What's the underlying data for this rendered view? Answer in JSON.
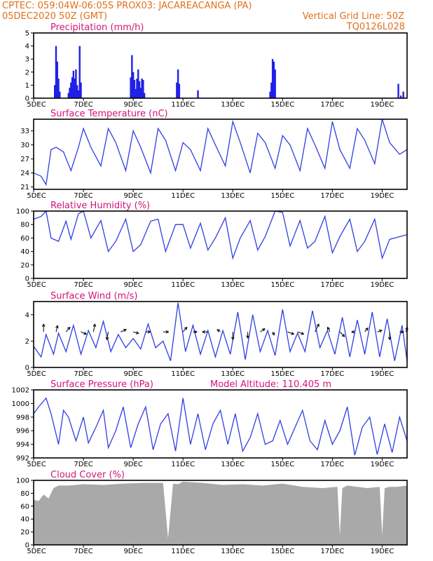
{
  "header": {
    "line1_left": "CPTEC:   059:04W-06:05S   PROX03: JACAREACANGA (PA)",
    "line2_left": "05DEC2020 50Z (GMT)",
    "line2_right": "Vertical Grid Line: 50Z",
    "line3_right": "TQ0126L028"
  },
  "colors": {
    "header": "#e0701a",
    "title": "#d4147a",
    "line": "#2f3fe0",
    "bar": "#2020e8",
    "cloud": "#a9a9a9",
    "wind": "#000000"
  },
  "x_ticks": [
    "5DEC",
    "7DEC",
    "9DEC",
    "11DEC",
    "13DEC",
    "15DEC",
    "17DEC",
    "19DEC"
  ],
  "x_tick_days": [
    0,
    2,
    4,
    6,
    8,
    10,
    12,
    14
  ],
  "chart_data": [
    {
      "type": "bar",
      "title": "Precipitation (mm/h)",
      "x_unit": "days since 5DEC",
      "ylim": [
        0,
        5
      ],
      "yticks": [
        0,
        1,
        2,
        3,
        4,
        5
      ],
      "x": [
        0.85,
        0.9,
        0.95,
        1.0,
        1.05,
        1.4,
        1.45,
        1.5,
        1.55,
        1.6,
        1.65,
        1.7,
        1.75,
        1.8,
        1.85,
        1.9,
        3.9,
        3.95,
        4.0,
        4.05,
        4.1,
        4.15,
        4.2,
        4.25,
        4.3,
        4.35,
        4.4,
        4.45,
        5.75,
        5.8,
        5.85,
        6.6,
        9.5,
        9.55,
        9.6,
        9.65,
        9.7,
        14.65,
        14.75,
        14.85
      ],
      "values": [
        1.0,
        4.0,
        2.8,
        1.5,
        0.5,
        0.4,
        0.8,
        1.2,
        1.6,
        2.1,
        1.5,
        2.2,
        1.0,
        0.6,
        4.0,
        1.2,
        1.6,
        3.3,
        2.0,
        1.4,
        0.7,
        1.5,
        2.2,
        1.3,
        0.8,
        1.5,
        1.4,
        0.4,
        1.2,
        2.2,
        1.1,
        0.6,
        0.5,
        1.2,
        3.0,
        2.8,
        2.2,
        1.1,
        0.2,
        0.5
      ]
    },
    {
      "type": "line",
      "title": "Surface Temperature (nC)",
      "x_unit": "days since 5DEC",
      "ylim": [
        20.5,
        35.5
      ],
      "yticks": [
        21,
        24,
        27,
        30,
        33
      ],
      "x": [
        0,
        0.3,
        0.5,
        0.7,
        0.9,
        1.2,
        1.5,
        1.8,
        2.0,
        2.3,
        2.7,
        3.0,
        3.3,
        3.7,
        4.0,
        4.3,
        4.7,
        5.0,
        5.3,
        5.7,
        6.0,
        6.3,
        6.7,
        7.0,
        7.3,
        7.7,
        8.0,
        8.3,
        8.7,
        9.0,
        9.3,
        9.7,
        10.0,
        10.3,
        10.7,
        11.0,
        11.3,
        11.7,
        12.0,
        12.3,
        12.7,
        13.0,
        13.3,
        13.7,
        14.0,
        14.3,
        14.7,
        15.0
      ],
      "values": [
        24,
        23.3,
        21.5,
        29.0,
        29.5,
        28.5,
        24.5,
        29.5,
        33.5,
        29.5,
        25.5,
        33.5,
        30.5,
        24.5,
        33.0,
        29.5,
        24.0,
        33.5,
        31.0,
        24.5,
        30.5,
        29.0,
        24.5,
        33.5,
        30.0,
        25.5,
        35.0,
        30.5,
        24.0,
        32.5,
        30.5,
        25.0,
        32.0,
        30.0,
        24.5,
        33.5,
        30.0,
        25.0,
        35.0,
        29.0,
        25.0,
        33.5,
        31.0,
        26.0,
        35.5,
        30.5,
        28.0,
        29.0
      ]
    },
    {
      "type": "line",
      "title": "Relative Humidity (%)",
      "x_unit": "days since 5DEC",
      "ylim": [
        0,
        100
      ],
      "yticks": [
        0,
        20,
        40,
        60,
        80,
        100
      ],
      "x": [
        0,
        0.3,
        0.5,
        0.7,
        1.0,
        1.3,
        1.5,
        1.8,
        2.0,
        2.3,
        2.7,
        3.0,
        3.3,
        3.7,
        4.0,
        4.3,
        4.7,
        5.0,
        5.3,
        5.7,
        6.0,
        6.3,
        6.7,
        7.0,
        7.3,
        7.7,
        8.0,
        8.3,
        8.7,
        9.0,
        9.3,
        9.7,
        10.0,
        10.3,
        10.7,
        11.0,
        11.3,
        11.7,
        12.0,
        12.3,
        12.7,
        13.0,
        13.3,
        13.7,
        14.0,
        14.3,
        14.7,
        15.0
      ],
      "values": [
        88,
        92,
        100,
        60,
        55,
        85,
        58,
        96,
        100,
        60,
        86,
        40,
        55,
        88,
        40,
        50,
        85,
        88,
        40,
        80,
        80,
        45,
        82,
        42,
        60,
        90,
        30,
        60,
        86,
        42,
        62,
        100,
        98,
        48,
        86,
        45,
        55,
        92,
        38,
        62,
        88,
        40,
        55,
        88,
        30,
        58,
        62,
        65
      ]
    },
    {
      "type": "line",
      "title": "Surface Wind (m/s)",
      "x_unit": "days since 5DEC",
      "ylim": [
        0,
        5
      ],
      "yticks": [
        0,
        2,
        4
      ],
      "x": [
        0,
        0.3,
        0.5,
        0.8,
        1.0,
        1.3,
        1.6,
        1.9,
        2.2,
        2.5,
        2.8,
        3.1,
        3.4,
        3.7,
        4.0,
        4.3,
        4.6,
        4.9,
        5.2,
        5.5,
        5.8,
        6.1,
        6.4,
        6.7,
        7.0,
        7.3,
        7.6,
        7.9,
        8.2,
        8.5,
        8.8,
        9.1,
        9.4,
        9.7,
        10.0,
        10.3,
        10.6,
        10.9,
        11.2,
        11.5,
        11.8,
        12.1,
        12.4,
        12.7,
        13.0,
        13.3,
        13.6,
        13.9,
        14.2,
        14.5,
        14.8,
        15.0
      ],
      "values": [
        1.6,
        0.8,
        2.5,
        1.0,
        2.6,
        1.2,
        3.2,
        1.0,
        2.8,
        1.5,
        3.5,
        1.2,
        2.5,
        1.5,
        2.2,
        1.4,
        3.3,
        1.5,
        2.0,
        0.5,
        4.9,
        1.2,
        3.2,
        1.0,
        2.8,
        0.8,
        2.8,
        1.0,
        4.2,
        0.6,
        4.0,
        1.2,
        2.8,
        0.9,
        4.4,
        1.2,
        2.6,
        1.2,
        4.3,
        1.5,
        2.8,
        1.0,
        3.8,
        0.8,
        3.6,
        1.0,
        4.2,
        0.8,
        3.7,
        0.5,
        3.2,
        0.5
      ],
      "vectors": [
        {
          "x": 0.4,
          "u": 0,
          "v": 1
        },
        {
          "x": 0.9,
          "u": 0.2,
          "v": 0.8
        },
        {
          "x": 1.3,
          "u": 0.5,
          "v": 0.6
        },
        {
          "x": 1.9,
          "u": 0.7,
          "v": -0.3
        },
        {
          "x": 2.4,
          "u": 0.2,
          "v": 1
        },
        {
          "x": 3.0,
          "u": -0.2,
          "v": -1
        },
        {
          "x": 3.5,
          "u": 0.7,
          "v": 0.3
        },
        {
          "x": 4.0,
          "u": 0.7,
          "v": -0.2
        },
        {
          "x": 4.5,
          "u": 0.6,
          "v": 0
        },
        {
          "x": 5.2,
          "u": 0.7,
          "v": 0
        },
        {
          "x": 6.0,
          "u": 0.5,
          "v": 0.6
        },
        {
          "x": 6.4,
          "u": 0.5,
          "v": 0
        },
        {
          "x": 7.0,
          "u": -0.7,
          "v": 0
        },
        {
          "x": 7.5,
          "u": -0.4,
          "v": 0.3
        },
        {
          "x": 8.0,
          "u": 0,
          "v": -1
        },
        {
          "x": 8.6,
          "u": 0,
          "v": -0.8
        },
        {
          "x": 9.1,
          "u": 0.6,
          "v": 0.4
        },
        {
          "x": 9.6,
          "u": 0.2,
          "v": -0.4
        },
        {
          "x": 10.2,
          "u": 0.8,
          "v": -0.3
        },
        {
          "x": 10.6,
          "u": 0.8,
          "v": -0.3
        },
        {
          "x": 11.3,
          "u": 0.5,
          "v": 1
        },
        {
          "x": 11.9,
          "u": -0.3,
          "v": 0.6
        },
        {
          "x": 12.3,
          "u": 0.6,
          "v": -0.6
        },
        {
          "x": 12.9,
          "u": -0.4,
          "v": 0
        },
        {
          "x": 13.3,
          "u": 0.4,
          "v": 0.5
        },
        {
          "x": 13.8,
          "u": 0.6,
          "v": 0.2
        },
        {
          "x": 14.3,
          "u": 0,
          "v": -1
        },
        {
          "x": 14.7,
          "u": 0.5,
          "v": 0
        },
        {
          "x": 14.95,
          "u": 0.2,
          "v": 0.6
        }
      ]
    },
    {
      "type": "line",
      "title": "Surface Pressure (hPa)",
      "annotation": "Model Altitude: 110.405  m",
      "x_unit": "days since 5DEC",
      "ylim": [
        992,
        1002
      ],
      "yticks": [
        992,
        994,
        996,
        998,
        1000,
        1002
      ],
      "x": [
        0,
        0.2,
        0.5,
        0.7,
        1.0,
        1.2,
        1.4,
        1.7,
        2.0,
        2.2,
        2.5,
        2.8,
        3.0,
        3.3,
        3.6,
        3.9,
        4.2,
        4.5,
        4.8,
        5.1,
        5.4,
        5.7,
        6.0,
        6.3,
        6.6,
        6.9,
        7.2,
        7.5,
        7.8,
        8.1,
        8.4,
        8.7,
        9.0,
        9.3,
        9.6,
        9.9,
        10.2,
        10.5,
        10.8,
        11.1,
        11.4,
        11.7,
        12.0,
        12.3,
        12.6,
        12.9,
        13.2,
        13.5,
        13.8,
        14.1,
        14.4,
        14.7,
        15.0
      ],
      "values": [
        998.5,
        999.5,
        1000.8,
        998.5,
        994.0,
        999.0,
        998.0,
        994.5,
        998.0,
        994.2,
        996.5,
        999.0,
        993.5,
        996.0,
        999.5,
        993.5,
        997.0,
        999.5,
        993.2,
        997.0,
        998.5,
        993.0,
        1000.8,
        994.0,
        998.5,
        993.2,
        997.0,
        999.0,
        994.0,
        998.5,
        993.0,
        995.0,
        998.5,
        994.0,
        994.5,
        997.5,
        994.0,
        996.5,
        999.0,
        994.5,
        993.2,
        997.5,
        994.0,
        996.0,
        999.5,
        992.4,
        996.5,
        998.0,
        992.5,
        997.0,
        992.8,
        998.0,
        994.5
      ]
    },
    {
      "type": "area",
      "title": "Cloud Cover (%)",
      "x_unit": "days since 5DEC",
      "ylim": [
        0,
        100
      ],
      "yticks": [
        0,
        20,
        40,
        60,
        80,
        100
      ],
      "x": [
        0,
        0.2,
        0.4,
        0.6,
        0.8,
        1.0,
        1.4,
        2.0,
        2.8,
        3.6,
        4.4,
        5.2,
        5.4,
        5.6,
        5.8,
        6.0,
        6.8,
        7.6,
        8.4,
        9.2,
        10.0,
        10.8,
        11.6,
        12.2,
        12.3,
        12.4,
        12.6,
        13.4,
        13.9,
        14.0,
        14.1,
        14.3,
        14.6,
        15.0
      ],
      "values": [
        70,
        68,
        78,
        72,
        88,
        92,
        92,
        94,
        93,
        95,
        96,
        96,
        10,
        95,
        94,
        98,
        96,
        93,
        94,
        92,
        95,
        90,
        88,
        90,
        15,
        88,
        92,
        88,
        90,
        15,
        88,
        90,
        90,
        92
      ]
    }
  ]
}
